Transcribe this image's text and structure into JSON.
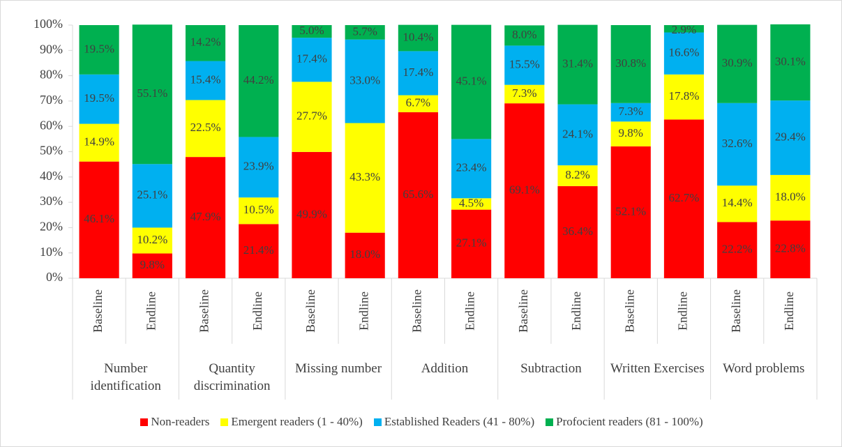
{
  "chart_data": {
    "type": "stacked_bar",
    "categories": [
      "Baseline",
      "Endline",
      "Baseline",
      "Endline",
      "Baseline",
      "Endline",
      "Baseline",
      "Endline",
      "Baseline",
      "Endline",
      "Baseline",
      "Endline",
      "Baseline",
      "Endline"
    ],
    "groups": [
      "Number identification",
      "Quantity discrimination",
      "Missing number",
      "Addition",
      "Subtraction",
      "Written Exercises",
      "Word problems"
    ],
    "ylim": [
      0,
      100
    ],
    "yticks": [
      {
        "value": 0,
        "label": "0%"
      },
      {
        "value": 10,
        "label": "10%"
      },
      {
        "value": 20,
        "label": "20%"
      },
      {
        "value": 30,
        "label": "30%"
      },
      {
        "value": 40,
        "label": "40%"
      },
      {
        "value": 50,
        "label": "50%"
      },
      {
        "value": 60,
        "label": "60%"
      },
      {
        "value": 70,
        "label": "70%"
      },
      {
        "value": 80,
        "label": "80%"
      },
      {
        "value": 90,
        "label": "90%"
      },
      {
        "value": 100,
        "label": "100%"
      }
    ],
    "legend": "bottom",
    "series": [
      {
        "name": "Non-readers",
        "color": "#ff0000",
        "values": [
          46.1,
          9.8,
          47.9,
          21.4,
          49.9,
          18.0,
          65.6,
          27.1,
          69.1,
          36.4,
          52.1,
          62.7,
          22.2,
          22.8
        ],
        "value_labels": [
          "46.1%",
          "9.8%",
          "47.9%",
          "21.4%",
          "49.9%",
          "18.0%",
          "65.6%",
          "27.1%",
          "69.1%",
          "36.4%",
          "52.1%",
          "62.7%",
          "22.2%",
          "22.8%"
        ]
      },
      {
        "name": "Emergent readers (1 - 40%)",
        "color": "#ffff00",
        "values": [
          14.9,
          10.2,
          22.5,
          10.5,
          27.7,
          43.3,
          6.7,
          4.5,
          7.3,
          8.2,
          9.8,
          17.8,
          14.4,
          18.0
        ],
        "value_labels": [
          "14.9%",
          "10.2%",
          "22.5%",
          "10.5%",
          "27.7%",
          "43.3%",
          "6.7%",
          "4.5%",
          "7.3%",
          "8.2%",
          "9.8%",
          "17.8%",
          "14.4%",
          "18.0%"
        ]
      },
      {
        "name": "Established Readers (41 - 80%)",
        "color": "#00b0f0",
        "values": [
          19.5,
          25.1,
          15.4,
          23.9,
          17.4,
          33.0,
          17.4,
          23.4,
          15.5,
          24.1,
          7.3,
          16.6,
          32.6,
          29.4
        ],
        "value_labels": [
          "19.5%",
          "25.1%",
          "15.4%",
          "23.9%",
          "17.4%",
          "33.0%",
          "17.4%",
          "23.4%",
          "15.5%",
          "24.1%",
          "7.3%",
          "16.6%",
          "32.6%",
          "29.4%"
        ]
      },
      {
        "name": "Profocient readers (81 - 100%)",
        "color": "#00b050",
        "values": [
          19.5,
          55.1,
          14.2,
          44.2,
          5.0,
          5.7,
          10.4,
          45.1,
          8.0,
          31.4,
          30.8,
          2.9,
          30.9,
          30.1
        ],
        "value_labels": [
          "19.5%",
          "55.1%",
          "14.2%",
          "44.2%",
          "5.0%",
          "5.7%",
          "10.4%",
          "45.1%",
          "8.0%",
          "31.4%",
          "30.8%",
          "2.9%",
          "30.9%",
          "30.1%"
        ]
      }
    ]
  }
}
